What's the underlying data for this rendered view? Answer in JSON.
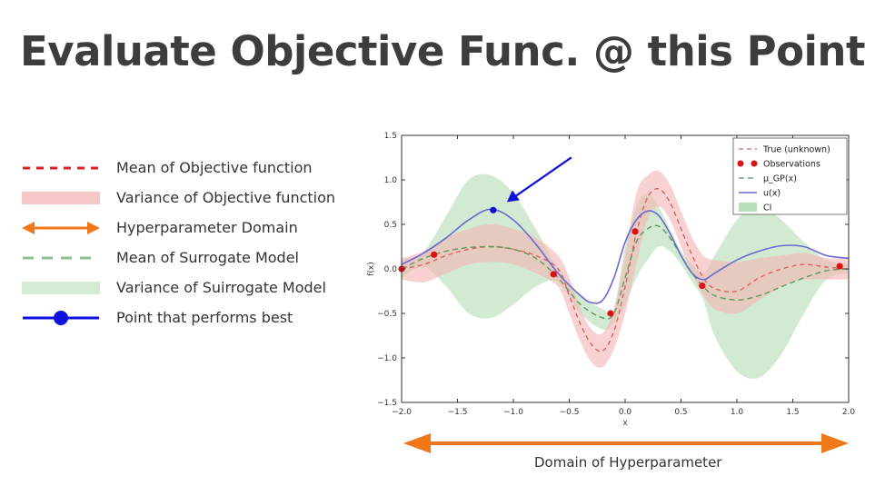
{
  "title": "Evaluate Objective Func. @ this Point",
  "legend": [
    {
      "label": "Mean of Objective function",
      "symbol": "dashed-line",
      "color": "#e02020"
    },
    {
      "label": "Variance of Objective function",
      "symbol": "band",
      "color": "#f7c6c6"
    },
    {
      "label": "Hyperparameter Domain",
      "symbol": "double-arrow",
      "color": "#f07818"
    },
    {
      "label": "Mean of Surrogate Model",
      "symbol": "dashed-line",
      "color": "#8fbf95"
    },
    {
      "label": "Variance of Suirrogate Model",
      "symbol": "band",
      "color": "#d3ead3"
    },
    {
      "label": "Point that performs best",
      "symbol": "line-dot",
      "color": "#1010e0"
    }
  ],
  "domain_label": "Domain of Hyperparameter",
  "colors": {
    "true_line": "#e06060",
    "true_band": "#f4b4b4",
    "gp_line": "#5a9a5a",
    "gp_band": "#b9dfb9",
    "ucb_line": "#6a6ad0",
    "observation": "#dd1111",
    "best_point": "#1010cc",
    "arrow": "#1111dd",
    "domain_arrow": "#f07818"
  },
  "chart_data": {
    "type": "line",
    "xlabel": "x",
    "ylabel": "f(x)",
    "xlim": [
      -2.0,
      2.0
    ],
    "ylim": [
      -1.5,
      1.5
    ],
    "xticks": [
      "−2.0",
      "−1.5",
      "−1.0",
      "−0.5",
      "0.0",
      "0.5",
      "1.0",
      "1.5",
      "2.0"
    ],
    "yticks": [
      "1.5",
      "1.0",
      "0.5",
      "0.0",
      "−0.5",
      "−1.0",
      "−1.5"
    ],
    "legend_position": "top-right",
    "legend": [
      "True (unknown)",
      "Observations",
      "μ_GP(x)",
      "u(x)",
      "CI"
    ],
    "true_mean": {
      "x": [
        -2.0,
        -1.8,
        -1.6,
        -1.4,
        -1.2,
        -1.0,
        -0.8,
        -0.6,
        -0.5,
        -0.4,
        -0.3,
        -0.2,
        -0.1,
        0.0,
        0.1,
        0.2,
        0.3,
        0.4,
        0.5,
        0.6,
        0.7,
        0.8,
        1.0,
        1.2,
        1.4,
        1.6,
        1.8,
        2.0
      ],
      "y": [
        0.0,
        0.05,
        0.15,
        0.22,
        0.25,
        0.22,
        0.15,
        0.0,
        -0.3,
        -0.62,
        -0.85,
        -0.92,
        -0.7,
        -0.2,
        0.4,
        0.8,
        0.9,
        0.75,
        0.45,
        0.15,
        -0.1,
        -0.22,
        -0.25,
        -0.1,
        0.0,
        0.05,
        0.02,
        0.0
      ]
    },
    "true_band": {
      "x": [
        -2.0,
        -1.8,
        -1.6,
        -1.4,
        -1.2,
        -1.0,
        -0.8,
        -0.6,
        -0.5,
        -0.4,
        -0.3,
        -0.2,
        -0.1,
        0.0,
        0.1,
        0.2,
        0.3,
        0.4,
        0.5,
        0.6,
        0.7,
        0.8,
        1.0,
        1.2,
        1.4,
        1.6,
        1.8,
        2.0
      ],
      "upper": [
        0.12,
        0.2,
        0.35,
        0.45,
        0.5,
        0.45,
        0.35,
        0.15,
        -0.1,
        -0.45,
        -0.68,
        -0.72,
        -0.45,
        0.15,
        0.85,
        1.05,
        1.1,
        0.95,
        0.65,
        0.35,
        0.15,
        0.1,
        0.08,
        0.12,
        0.15,
        0.18,
        0.12,
        0.12
      ],
      "lower": [
        -0.12,
        -0.15,
        -0.05,
        0.05,
        0.08,
        0.05,
        -0.05,
        -0.2,
        -0.5,
        -0.82,
        -1.05,
        -1.1,
        -0.9,
        -0.5,
        0.05,
        0.55,
        0.7,
        0.55,
        0.25,
        -0.05,
        -0.3,
        -0.45,
        -0.5,
        -0.35,
        -0.2,
        -0.12,
        -0.12,
        -0.12
      ]
    },
    "gp_mean": {
      "x": [
        -2.0,
        -1.8,
        -1.6,
        -1.4,
        -1.2,
        -1.0,
        -0.8,
        -0.6,
        -0.4,
        -0.2,
        -0.1,
        0.0,
        0.1,
        0.2,
        0.3,
        0.4,
        0.5,
        0.6,
        0.7,
        0.8,
        1.0,
        1.2,
        1.4,
        1.6,
        1.8,
        2.0
      ],
      "y": [
        0.0,
        0.12,
        0.2,
        0.24,
        0.25,
        0.22,
        0.12,
        -0.1,
        -0.4,
        -0.55,
        -0.5,
        -0.1,
        0.3,
        0.45,
        0.48,
        0.35,
        0.15,
        -0.05,
        -0.2,
        -0.3,
        -0.35,
        -0.3,
        -0.2,
        -0.1,
        -0.02,
        0.0
      ]
    },
    "gp_band": {
      "x": [
        -2.0,
        -1.8,
        -1.6,
        -1.4,
        -1.2,
        -1.0,
        -0.8,
        -0.6,
        -0.4,
        -0.2,
        -0.1,
        0.0,
        0.1,
        0.2,
        0.3,
        0.4,
        0.5,
        0.6,
        0.7,
        0.8,
        1.0,
        1.2,
        1.4,
        1.6,
        1.8,
        2.0
      ],
      "upper": [
        0.1,
        0.2,
        0.6,
        1.0,
        1.05,
        0.85,
        0.45,
        0.0,
        -0.3,
        -0.45,
        -0.45,
        0.25,
        0.7,
        0.85,
        0.7,
        0.45,
        0.2,
        0.05,
        -0.05,
        0.15,
        0.55,
        0.72,
        0.55,
        0.3,
        0.1,
        0.05
      ],
      "lower": [
        -0.1,
        0.02,
        -0.2,
        -0.5,
        -0.55,
        -0.4,
        -0.2,
        -0.15,
        -0.5,
        -0.68,
        -0.6,
        -0.4,
        -0.1,
        0.1,
        0.25,
        0.2,
        0.05,
        -0.15,
        -0.35,
        -0.75,
        -1.15,
        -1.22,
        -0.95,
        -0.5,
        -0.12,
        -0.05
      ]
    },
    "ucb": {
      "x": [
        -2.0,
        -1.8,
        -1.6,
        -1.4,
        -1.2,
        -1.0,
        -0.8,
        -0.6,
        -0.4,
        -0.3,
        -0.2,
        -0.1,
        0.0,
        0.1,
        0.2,
        0.3,
        0.4,
        0.5,
        0.6,
        0.7,
        0.8,
        1.0,
        1.2,
        1.4,
        1.6,
        1.8,
        2.0
      ],
      "y": [
        0.05,
        0.18,
        0.35,
        0.55,
        0.67,
        0.55,
        0.28,
        -0.05,
        -0.3,
        -0.38,
        -0.35,
        -0.1,
        0.3,
        0.55,
        0.65,
        0.6,
        0.4,
        0.15,
        -0.05,
        -0.12,
        -0.05,
        0.1,
        0.2,
        0.26,
        0.25,
        0.15,
        0.12
      ]
    },
    "observations": {
      "x": [
        -2.0,
        -1.71,
        -0.64,
        -0.13,
        0.09,
        0.69,
        1.92
      ],
      "y": [
        0.0,
        0.16,
        -0.06,
        -0.5,
        0.42,
        -0.19,
        0.03
      ]
    },
    "best_point": {
      "x": -1.18,
      "y": 0.66
    }
  }
}
